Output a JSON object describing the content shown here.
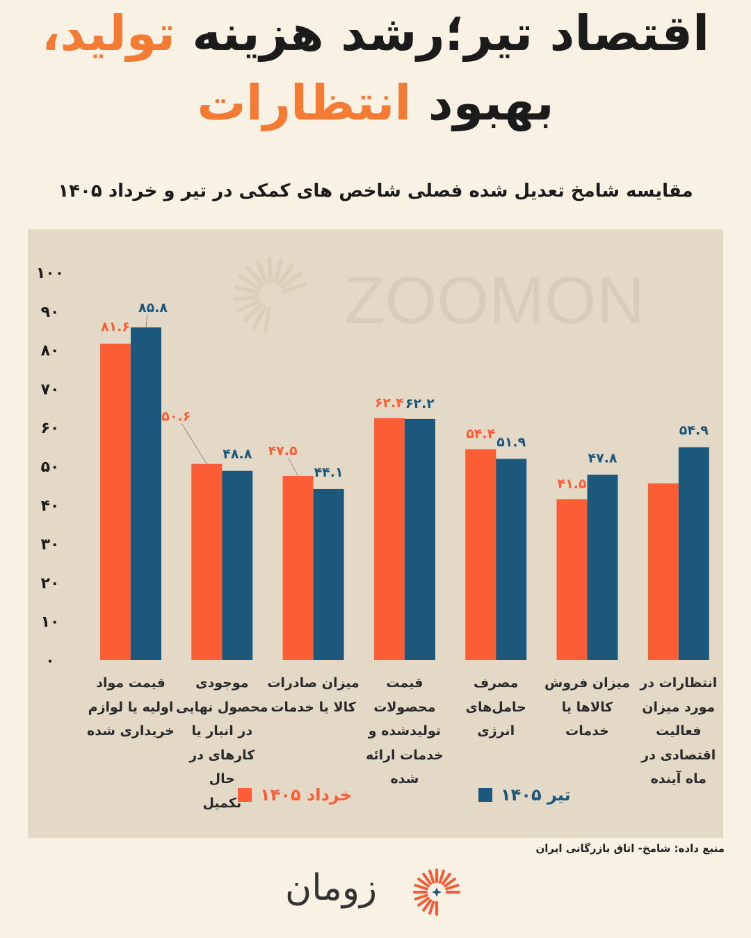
{
  "title": {
    "line1_black": "اقتصاد تیر؛رشد هزینه",
    "line1_orange": "تولید،",
    "line2_black": "بهبود",
    "line2_orange": "انتظارات"
  },
  "subtitle": "مقایسه شامخ تعدیل شده فصلی شاخص های کمکی در تیر و خرداد ۱۴۰۵",
  "source": "منبع داده: شامخ- اتاق بازرگانی ایران",
  "logo": {
    "text": "زومان"
  },
  "watermark": "ZOOMON",
  "colors": {
    "khordad": "#fb5d34",
    "tir": "#1b587c",
    "background": "#faf1e5",
    "panel": "#e4d9c7"
  },
  "chart_data": {
    "type": "bar",
    "ylim": [
      0,
      100
    ],
    "y_ticks": [
      "۰",
      "۱۰",
      "۲۰",
      "۳۰",
      "۴۰",
      "۵۰",
      "۶۰",
      "۷۰",
      "۸۰",
      "۹۰",
      "۱۰۰"
    ],
    "categories": [
      "قیمت مواد اولیه یا لوازم خریداری شده",
      "موجودی محصول نهایی در انبار یا کارهای در حال تکمیل",
      "میزان صادرات کالا یا خدمات",
      "قیمت محصولات تولیدشده و خدمات ارائه شده",
      "مصرف حامل‌های انرژی",
      "میزان فروش کالاها یا خدمات",
      "انتظارات در مورد میزان فعالیت اقتصادی در ماه آینده"
    ],
    "category_lines": [
      [
        "قیمت مواد",
        "اولیه یا لوازم",
        "خریداری شده"
      ],
      [
        "موجودی",
        "محصول نهایی",
        "در انبار یا",
        "کارهای در حال",
        "تکمیل"
      ],
      [
        "میزان صادرات",
        "کالا یا خدمات"
      ],
      [
        "قیمت",
        "محصولات",
        "تولیدشده و",
        "خدمات ارائه",
        "شده"
      ],
      [
        "مصرف",
        "حامل‌های",
        "انرژی"
      ],
      [
        "میزان فروش",
        "کالاها یا",
        "خدمات"
      ],
      [
        "انتظارات در",
        "مورد میزان",
        "فعالیت",
        "اقتصادی در",
        "ماه آینده"
      ]
    ],
    "series": [
      {
        "name": "خرداد ۱۴۰۵",
        "values": [
          81.6,
          50.6,
          47.5,
          62.4,
          54.4,
          41.5,
          45.6
        ],
        "labels": [
          "۸۱.۶",
          "۵۰.۶",
          "۴۷.۵",
          "۶۲.۴",
          "۵۴.۴",
          "۴۱.۵",
          ""
        ]
      },
      {
        "name": "تیر ۱۴۰۵",
        "values": [
          85.8,
          48.8,
          44.1,
          62.2,
          51.9,
          47.8,
          54.9
        ],
        "labels": [
          "۸۵.۸",
          "۴۸.۸",
          "۴۴.۱",
          "۶۲.۲",
          "۵۱.۹",
          "۴۷.۸",
          "۵۴.۹"
        ]
      }
    ]
  }
}
